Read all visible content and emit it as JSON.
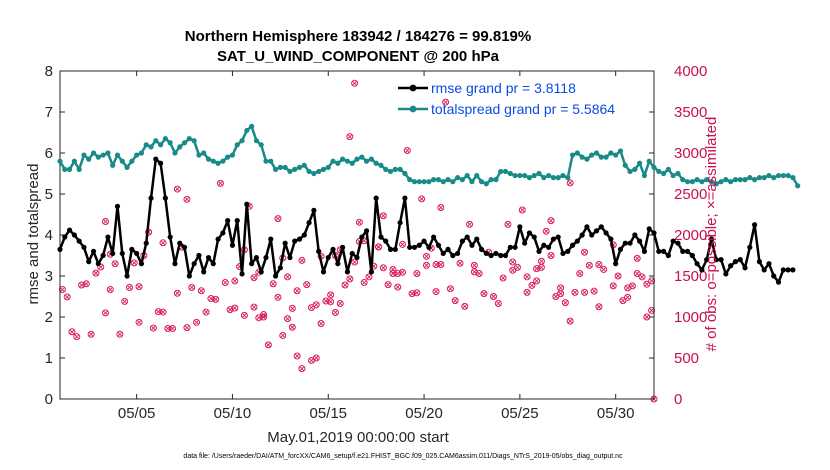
{
  "chart_data": {
    "type": "line",
    "title_line1": "Northern Hemisphere 183942 / 184276 = 99.819%",
    "title_line2": "SAT_U_WIND_COMPONENT @ 200 hPa",
    "xlabel": "May.01,2019 00:00:00 start",
    "ylabel": "rmse and totalspread",
    "ylabel_right": "# of obs: o=possible; ×=assimilated",
    "xlim": [
      1,
      32
    ],
    "ylim": [
      0,
      8
    ],
    "ylim_right": [
      0,
      4000
    ],
    "x_ticks": [
      5,
      10,
      15,
      20,
      25,
      30
    ],
    "x_tick_labels": [
      "05/05",
      "05/10",
      "05/15",
      "05/20",
      "05/25",
      "05/30"
    ],
    "y_ticks": [
      "0",
      "1",
      "2",
      "3",
      "4",
      "5",
      "6",
      "7",
      "8"
    ],
    "y_ticks_right": [
      "0",
      "500",
      "1000",
      "1500",
      "2000",
      "2500",
      "3000",
      "3500",
      "4000"
    ],
    "series": [
      {
        "name": "rmse",
        "legend": "rmse grand pr = 3.8118",
        "color": "#000000",
        "step": 0.25,
        "start": 1.0,
        "values": [
          3.65,
          3.95,
          4.12,
          4.0,
          3.85,
          3.7,
          3.35,
          3.6,
          3.3,
          3.5,
          3.95,
          3.55,
          4.7,
          3.55,
          3.0,
          3.65,
          3.55,
          3.3,
          3.8,
          4.9,
          5.85,
          5.75,
          4.9,
          3.95,
          3.3,
          3.8,
          3.7,
          3.0,
          3.3,
          3.5,
          3.1,
          3.45,
          3.3,
          3.9,
          4.05,
          4.35,
          3.75,
          4.35,
          3.05,
          4.75,
          3.3,
          3.45,
          3.1,
          3.45,
          3.9,
          3.0,
          3.2,
          3.8,
          3.45,
          3.85,
          3.9,
          4.0,
          4.3,
          4.6,
          3.6,
          3.1,
          3.45,
          3.65,
          3.3,
          3.7,
          3.1,
          3.55,
          3.45,
          3.95,
          4.1,
          3.1,
          4.9,
          3.95,
          3.85,
          3.65,
          3.65,
          4.3,
          4.9,
          3.7,
          3.7,
          3.75,
          3.85,
          3.7,
          3.95,
          3.75,
          3.55,
          3.65,
          3.5,
          3.55,
          3.85,
          3.95,
          3.75,
          3.9,
          3.65,
          3.55,
          3.5,
          3.55,
          3.5,
          3.5,
          3.7,
          3.7,
          4.2,
          3.8,
          4.05,
          3.95,
          3.6,
          3.75,
          3.7,
          3.9,
          3.95,
          3.55,
          3.6,
          3.75,
          3.85,
          4.0,
          4.2,
          4.0,
          4.1,
          4.2,
          4.05,
          3.9,
          3.3,
          3.65,
          3.8,
          3.8,
          4.0,
          3.85,
          3.6,
          4.15,
          4.05,
          3.6,
          3.6,
          3.5,
          3.85,
          3.8,
          3.6,
          3.6,
          3.5,
          3.3,
          3.15,
          3.4,
          3.9,
          3.4,
          3.4,
          3.05,
          3.25,
          3.35,
          3.4,
          3.2,
          3.7,
          4.25,
          3.35,
          3.15,
          3.3,
          3.0,
          2.85,
          3.15,
          3.15,
          3.15
        ]
      },
      {
        "name": "totalspread",
        "legend": "totalspread grand pr = 5.5864",
        "color": "#188a88",
        "step": 0.25,
        "start": 1.0,
        "values": [
          5.8,
          5.6,
          5.6,
          5.8,
          5.6,
          5.95,
          5.85,
          6.0,
          5.9,
          5.95,
          6.0,
          5.7,
          5.95,
          5.8,
          5.65,
          5.8,
          5.95,
          6.0,
          6.2,
          6.15,
          6.3,
          6.2,
          6.35,
          6.25,
          6.0,
          6.15,
          6.25,
          6.35,
          6.3,
          5.95,
          6.0,
          5.85,
          5.8,
          5.75,
          5.8,
          5.9,
          5.95,
          6.2,
          6.3,
          6.55,
          6.65,
          6.3,
          6.2,
          5.8,
          5.8,
          5.6,
          5.65,
          5.65,
          5.55,
          5.6,
          5.65,
          5.7,
          5.55,
          5.5,
          5.55,
          5.6,
          5.65,
          5.8,
          5.75,
          5.85,
          5.8,
          5.75,
          5.85,
          5.9,
          5.8,
          5.85,
          5.75,
          5.7,
          5.6,
          5.55,
          5.6,
          5.6,
          5.5,
          5.35,
          5.3,
          5.3,
          5.3,
          5.3,
          5.35,
          5.35,
          5.3,
          5.35,
          5.3,
          5.4,
          5.35,
          5.45,
          5.3,
          5.45,
          5.3,
          5.25,
          5.35,
          5.35,
          5.55,
          5.55,
          5.5,
          5.45,
          5.45,
          5.45,
          5.4,
          5.45,
          5.5,
          5.4,
          5.45,
          5.4,
          5.4,
          5.45,
          5.4,
          5.95,
          6.0,
          5.9,
          5.85,
          5.95,
          6.0,
          5.9,
          5.9,
          6.0,
          5.95,
          6.05,
          5.7,
          5.55,
          5.6,
          5.75,
          5.45,
          5.8,
          5.65,
          5.55,
          5.5,
          5.6,
          5.45,
          5.5,
          5.35,
          5.3,
          5.3,
          5.35,
          5.3,
          5.35,
          5.3,
          5.25,
          5.3,
          5.35,
          5.3,
          5.35,
          5.35,
          5.35,
          5.4,
          5.35,
          5.4,
          5.4,
          5.45,
          5.4,
          5.45,
          5.45,
          5.45,
          5.4,
          5.2
        ]
      }
    ],
    "obs_counts": {
      "name": "obs",
      "marker_color": "#d81b60",
      "points": [
        [
          1.125,
          1335
        ],
        [
          1.375,
          1245
        ],
        [
          1.625,
          820
        ],
        [
          1.875,
          760
        ],
        [
          2.125,
          1390
        ],
        [
          2.375,
          1405
        ],
        [
          2.625,
          790
        ],
        [
          2.875,
          1535
        ],
        [
          3.125,
          1610
        ],
        [
          3.375,
          2165
        ],
        [
          3.625,
          1765
        ],
        [
          3.875,
          1650
        ],
        [
          4.125,
          790
        ],
        [
          4.375,
          1190
        ],
        [
          4.625,
          1360
        ],
        [
          4.875,
          1660
        ],
        [
          5.125,
          935
        ],
        [
          5.375,
          1750
        ],
        [
          5.625,
          2035
        ],
        [
          5.875,
          865
        ],
        [
          6.125,
          1065
        ],
        [
          6.375,
          1905
        ],
        [
          6.625,
          860
        ],
        [
          6.875,
          860
        ],
        [
          7.125,
          1290
        ],
        [
          7.375,
          1850
        ],
        [
          7.625,
          870
        ],
        [
          7.875,
          1360
        ],
        [
          8.125,
          935
        ],
        [
          8.375,
          1320
        ],
        [
          8.625,
          1060
        ],
        [
          8.875,
          1225
        ],
        [
          9.125,
          1215
        ],
        [
          9.375,
          2630
        ],
        [
          9.625,
          1420
        ],
        [
          9.875,
          1090
        ],
        [
          10.125,
          1110
        ],
        [
          10.375,
          1615
        ],
        [
          10.625,
          1020
        ],
        [
          10.875,
          2350
        ],
        [
          11.125,
          1120
        ],
        [
          11.375,
          1545
        ],
        [
          11.625,
          1030
        ],
        [
          11.875,
          660
        ],
        [
          12.125,
          1405
        ],
        [
          12.375,
          1240
        ],
        [
          12.625,
          775
        ],
        [
          12.875,
          980
        ],
        [
          13.125,
          875
        ],
        [
          13.375,
          525
        ],
        [
          13.625,
          370
        ],
        [
          13.875,
          1395
        ],
        [
          14.125,
          470
        ],
        [
          14.375,
          500
        ],
        [
          14.625,
          920
        ],
        [
          14.875,
          1195
        ],
        [
          15.125,
          1270
        ],
        [
          15.375,
          1055
        ],
        [
          15.625,
          1165
        ],
        [
          15.875,
          1390
        ],
        [
          16.125,
          1465
        ],
        [
          16.375,
          1670
        ],
        [
          16.625,
          2155
        ],
        [
          16.875,
          1420
        ],
        [
          17.125,
          1490
        ],
        [
          17.375,
          1620
        ],
        [
          17.625,
          1855
        ],
        [
          17.875,
          2235
        ],
        [
          18.125,
          1395
        ],
        [
          18.375,
          1530
        ],
        [
          18.625,
          1365
        ],
        [
          18.875,
          1545
        ],
        [
          19.125,
          3030
        ],
        [
          19.375,
          1285
        ],
        [
          19.625,
          1530
        ],
        [
          19.875,
          2440
        ],
        [
          20.125,
          1740
        ],
        [
          20.375,
          1840
        ],
        [
          20.625,
          1640
        ],
        [
          20.875,
          2335
        ],
        [
          21.125,
          3620
        ],
        [
          21.375,
          1345
        ],
        [
          21.625,
          1200
        ],
        [
          21.875,
          1655
        ],
        [
          22.125,
          1130
        ],
        [
          22.375,
          2130
        ],
        [
          22.625,
          1550
        ],
        [
          22.875,
          1530
        ],
        [
          23.125,
          1285
        ],
        [
          23.375,
          1790
        ],
        [
          23.625,
          1250
        ],
        [
          23.875,
          1165
        ],
        [
          24.125,
          1475
        ],
        [
          24.375,
          2130
        ],
        [
          24.625,
          1670
        ],
        [
          24.875,
          1605
        ],
        [
          25.125,
          2305
        ],
        [
          25.375,
          1490
        ],
        [
          25.625,
          1385
        ],
        [
          25.875,
          1440
        ],
        [
          26.125,
          1605
        ],
        [
          26.375,
          2045
        ],
        [
          26.625,
          2175
        ],
        [
          26.875,
          1250
        ],
        [
          27.125,
          1355
        ],
        [
          27.375,
          1175
        ],
        [
          27.625,
          950
        ],
        [
          27.875,
          1300
        ],
        [
          28.125,
          1530
        ],
        [
          28.375,
          1790
        ],
        [
          28.625,
          1630
        ],
        [
          28.875,
          1315
        ],
        [
          29.125,
          1125
        ],
        [
          29.375,
          1580
        ],
        [
          29.875,
          1380
        ],
        [
          30.125,
          1500
        ],
        [
          30.375,
          1200
        ],
        [
          30.625,
          1355
        ],
        [
          30.875,
          1380
        ],
        [
          31.125,
          1715
        ],
        [
          31.375,
          1490
        ],
        [
          31.625,
          1400
        ],
        [
          31.875,
          1440
        ],
        [
          3.375,
          1050
        ],
        [
          3.625,
          1335
        ],
        [
          5.125,
          1370
        ],
        [
          6.375,
          1060
        ],
        [
          7.125,
          2560
        ],
        [
          7.625,
          2435
        ],
        [
          10.125,
          1440
        ],
        [
          10.625,
          1820
        ],
        [
          11.125,
          1480
        ],
        [
          11.375,
          990
        ],
        [
          11.625,
          1000
        ],
        [
          12.375,
          2200
        ],
        [
          12.625,
          1720
        ],
        [
          12.875,
          1490
        ],
        [
          13.125,
          1105
        ],
        [
          13.375,
          1320
        ],
        [
          13.625,
          1690
        ],
        [
          14.125,
          1115
        ],
        [
          14.375,
          1150
        ],
        [
          14.625,
          1740
        ],
        [
          15.125,
          1185
        ],
        [
          15.375,
          1750
        ],
        [
          15.625,
          1820
        ],
        [
          16.125,
          3200
        ],
        [
          16.375,
          3850
        ],
        [
          16.625,
          1920
        ],
        [
          16.875,
          1930
        ],
        [
          17.625,
          1855
        ],
        [
          17.875,
          1600
        ],
        [
          18.375,
          1580
        ],
        [
          18.625,
          1530
        ],
        [
          18.875,
          1885
        ],
        [
          19.625,
          1295
        ],
        [
          20.125,
          1630
        ],
        [
          20.625,
          1310
        ],
        [
          20.875,
          1640
        ],
        [
          22.625,
          1630
        ],
        [
          24.625,
          1570
        ],
        [
          25.375,
          1300
        ],
        [
          25.875,
          1590
        ],
        [
          26.125,
          1680
        ],
        [
          26.625,
          1750
        ],
        [
          27.125,
          1285
        ],
        [
          27.625,
          2635
        ],
        [
          28.375,
          1300
        ],
        [
          29.125,
          1640
        ],
        [
          29.875,
          1880
        ],
        [
          30.625,
          1240
        ],
        [
          31.125,
          1530
        ],
        [
          31.625,
          1000
        ],
        [
          31.875,
          1080
        ],
        [
          32.0,
          0
        ]
      ]
    }
  },
  "footnote": "data file: /Users/raeder/DAI/ATM_forcXX/CAM6_setup/f.e21.FHIST_BGC.f09_025.CAM6assim.011/Diags_NTrS_2019-05/obs_diag_output.nc"
}
